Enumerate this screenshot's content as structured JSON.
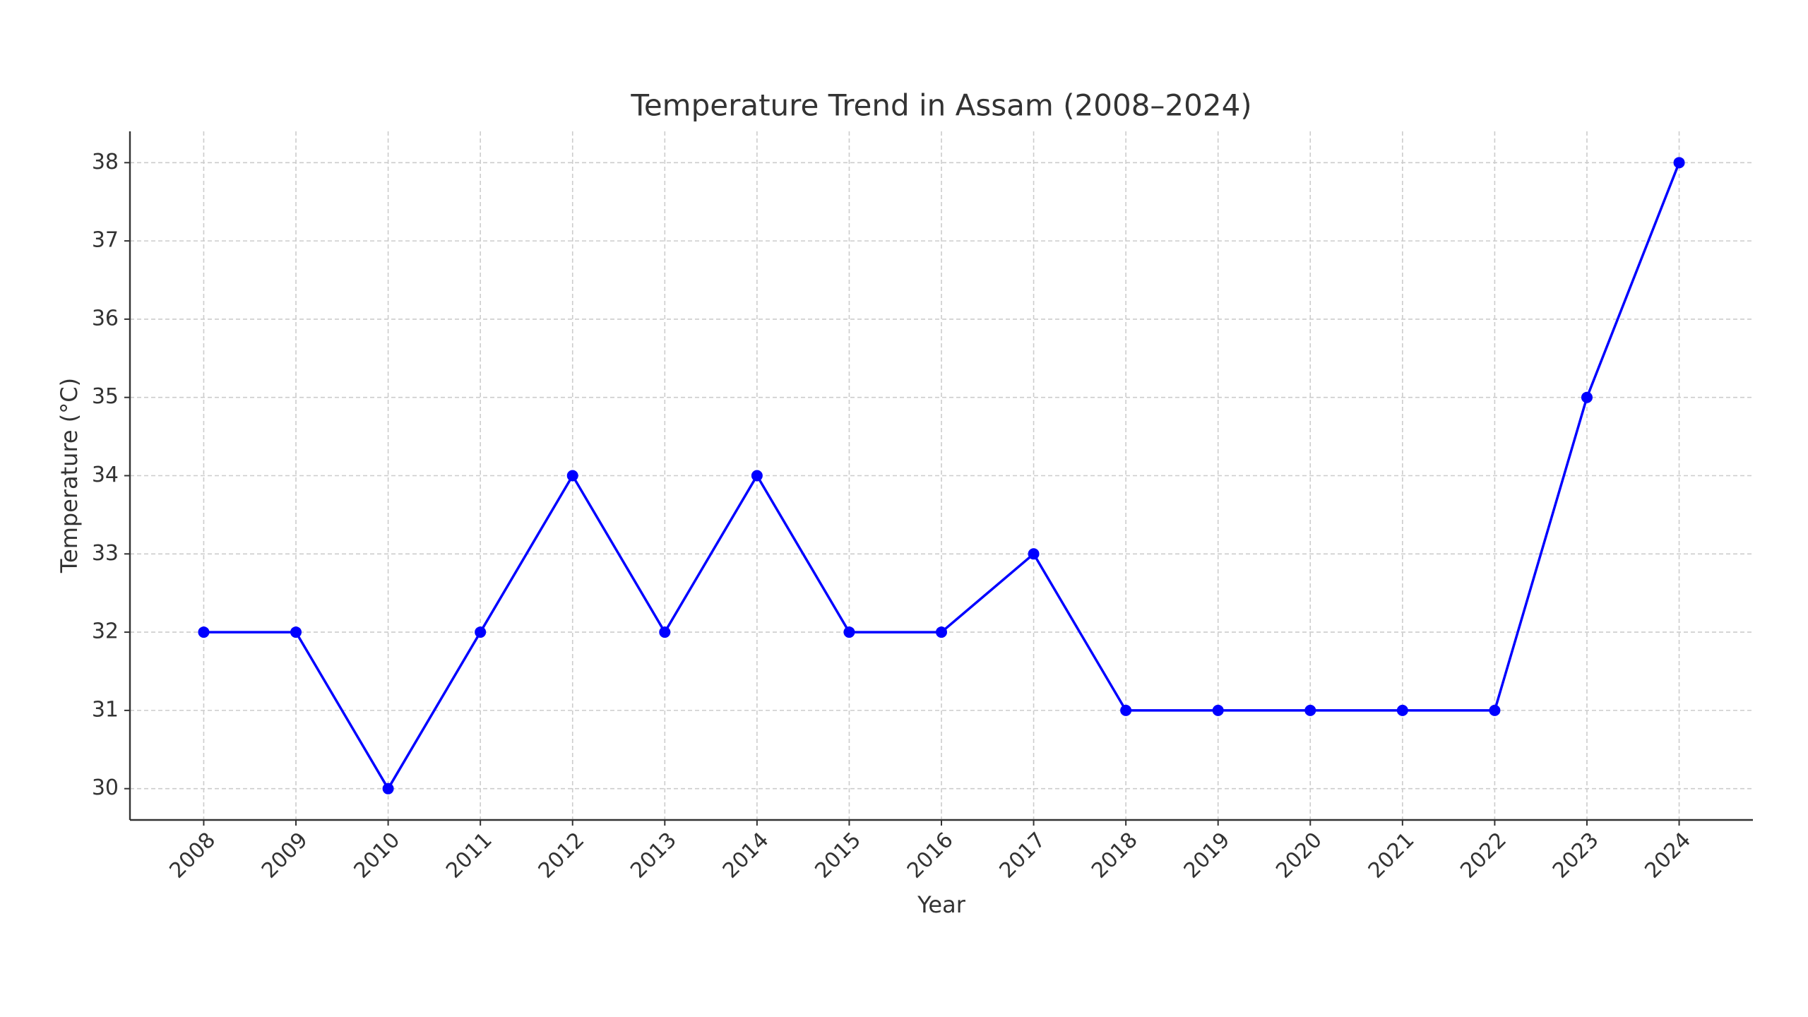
{
  "chart_data": {
    "type": "line",
    "title": "Temperature Trend in Assam (2008–2024)",
    "x_label": "Year",
    "y_label": "Temperature (°C)",
    "x": [
      2008,
      2009,
      2010,
      2011,
      2012,
      2013,
      2014,
      2015,
      2016,
      2017,
      2018,
      2019,
      2020,
      2021,
      2022,
      2023,
      2024
    ],
    "series": [
      {
        "name": "Temperature",
        "color": "#0000ff",
        "values": [
          32,
          32,
          30,
          32,
          34,
          32,
          34,
          32,
          32,
          33,
          31,
          31,
          31,
          31,
          31,
          35,
          38
        ]
      }
    ],
    "xlim": [
      2007.2,
      2024.8
    ],
    "xticks": [
      2008,
      2009,
      2010,
      2011,
      2012,
      2013,
      2014,
      2015,
      2016,
      2017,
      2018,
      2019,
      2020,
      2021,
      2022,
      2023,
      2024
    ],
    "ylim": [
      29.6,
      38.4
    ],
    "yticks": [
      30,
      31,
      32,
      33,
      34,
      35,
      36,
      37,
      38
    ],
    "grid": true
  }
}
